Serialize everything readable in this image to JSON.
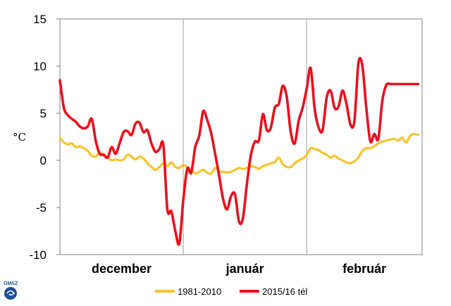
{
  "chart_data": {
    "type": "line",
    "ylabel": "°C",
    "xlabel": "",
    "ylim": [
      -10,
      15
    ],
    "yticks": [
      -10,
      -5,
      0,
      5,
      10,
      15
    ],
    "grid": "vertical month separators only",
    "legend_position": "bottom-center",
    "months": [
      "december",
      "január",
      "február"
    ],
    "month_days": [
      31,
      31,
      29
    ],
    "x_unit": "day of winter (1 Dec = 0)",
    "series": [
      {
        "name": "1981-2010",
        "color": "#f9c22e",
        "x": [
          0,
          1,
          2,
          3,
          4,
          5,
          6,
          7,
          8,
          9,
          10,
          11,
          12,
          13,
          14,
          15,
          16,
          17,
          18,
          19,
          20,
          21,
          22,
          23,
          24,
          25,
          26,
          27,
          28,
          29,
          30,
          31,
          32,
          33,
          34,
          35,
          36,
          37,
          38,
          39,
          40,
          41,
          42,
          43,
          44,
          45,
          46,
          47,
          48,
          49,
          50,
          51,
          52,
          53,
          54,
          55,
          56,
          57,
          58,
          59,
          60,
          61,
          62,
          63,
          64,
          65,
          66,
          67,
          68,
          69,
          70,
          71,
          72,
          73,
          74,
          75,
          76,
          77,
          78,
          79,
          80,
          81,
          82,
          83,
          84,
          85,
          86,
          87,
          88,
          89,
          90
        ],
        "values": [
          2.4,
          1.9,
          1.7,
          1.8,
          1.4,
          1.5,
          1.3,
          1.0,
          0.5,
          0.4,
          0.8,
          0.6,
          0.3,
          0.0,
          0.1,
          0.0,
          0.1,
          0.6,
          0.4,
          0.1,
          0.4,
          0.2,
          -0.3,
          -0.7,
          -1.0,
          -0.7,
          -0.3,
          -0.6,
          -0.2,
          -0.7,
          -0.8,
          -0.5,
          -0.7,
          -1.0,
          -1.4,
          -1.2,
          -1.0,
          -1.3,
          -1.4,
          -0.8,
          -1.2,
          -1.2,
          -1.3,
          -1.2,
          -1.0,
          -0.8,
          -0.9,
          -0.8,
          -0.6,
          -0.7,
          -0.9,
          -0.6,
          -0.5,
          -0.3,
          -0.2,
          0.3,
          -0.4,
          -0.7,
          -0.7,
          -0.3,
          0.0,
          0.2,
          0.6,
          1.3,
          1.2,
          1.1,
          0.8,
          0.6,
          0.3,
          0.5,
          0.2,
          0.0,
          -0.2,
          -0.3,
          -0.1,
          0.3,
          1.0,
          1.3,
          1.3,
          1.5,
          1.8,
          2.0,
          2.1,
          2.2,
          2.3,
          2.1,
          2.4,
          1.9,
          2.6,
          2.8,
          2.7
        ]
      },
      {
        "name": "2015/16 tél",
        "color": "#e8101e",
        "x": [
          0,
          1,
          2,
          3,
          4,
          5,
          6,
          7,
          8,
          9,
          10,
          11,
          12,
          13,
          14,
          15,
          16,
          17,
          18,
          19,
          20,
          21,
          22,
          23,
          24,
          25,
          26,
          27,
          28,
          29,
          30,
          31,
          32,
          33,
          34,
          35,
          36,
          37,
          38,
          39,
          40,
          41,
          42,
          43,
          44,
          45,
          46,
          47,
          48,
          49,
          50,
          51,
          52,
          53,
          54,
          55,
          56,
          57,
          58,
          59,
          60,
          61,
          62,
          63,
          64,
          65,
          66,
          67,
          68,
          69,
          70,
          71,
          72,
          73,
          74,
          75,
          76,
          77,
          78,
          79,
          80,
          81,
          82,
          83,
          84,
          85,
          86,
          87,
          88,
          89,
          90
        ],
        "values": [
          8.5,
          5.6,
          4.8,
          4.4,
          4.1,
          3.6,
          3.4,
          3.6,
          4.4,
          2.1,
          0.7,
          0.6,
          0.3,
          1.4,
          0.7,
          1.8,
          3.0,
          3.1,
          2.7,
          3.9,
          4.0,
          3.0,
          3.2,
          1.8,
          0.9,
          1.2,
          1.6,
          -5.2,
          -5.4,
          -7.5,
          -8.8,
          -4.2,
          -0.9,
          -1.3,
          1.4,
          2.6,
          5.2,
          4.3,
          2.9,
          0.7,
          -1.6,
          -4.1,
          -5.2,
          -3.8,
          -3.6,
          -6.5,
          -6.1,
          -2.4,
          0.6,
          2.0,
          2.1,
          4.9,
          3.2,
          3.5,
          5.6,
          6.0,
          7.9,
          6.7,
          3.0,
          1.8,
          4.2,
          5.6,
          7.6,
          9.8,
          5.5,
          3.5,
          3.2,
          6.6,
          7.4,
          5.6,
          5.7,
          7.4,
          6.0,
          3.8,
          4.2,
          10.3,
          10.0,
          5.5,
          2.0,
          2.8,
          2.3,
          6.3,
          8.0,
          8.1,
          8.1,
          8.1,
          8.1,
          8.1,
          8.1,
          8.1,
          8.1
        ]
      }
    ]
  },
  "logo": {
    "text": "OMSZ"
  }
}
